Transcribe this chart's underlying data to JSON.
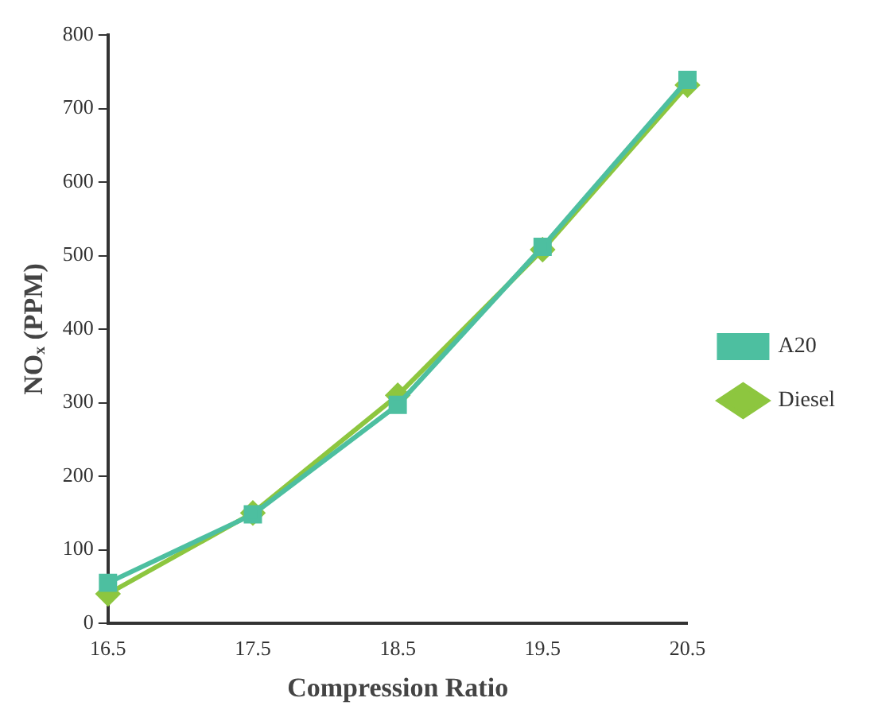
{
  "chart_data": {
    "type": "line",
    "xlabel": "Compression Ratio",
    "ylabel": "NOₓ (PPM)",
    "categories": [
      "16.5",
      "17.5",
      "18.5",
      "19.5",
      "20.5"
    ],
    "series": [
      {
        "name": "Diesel",
        "color": "#8dc63f",
        "marker": "diamond",
        "values": [
          40,
          150,
          310,
          508,
          732
        ]
      },
      {
        "name": "A20",
        "color": "#4dbfa0",
        "marker": "square",
        "values": [
          55,
          148,
          297,
          512,
          739
        ]
      }
    ],
    "ylim": [
      0,
      800
    ],
    "yticks": [
      0,
      100,
      200,
      300,
      400,
      500,
      600,
      700,
      800
    ],
    "grid": false,
    "legend": "right"
  }
}
